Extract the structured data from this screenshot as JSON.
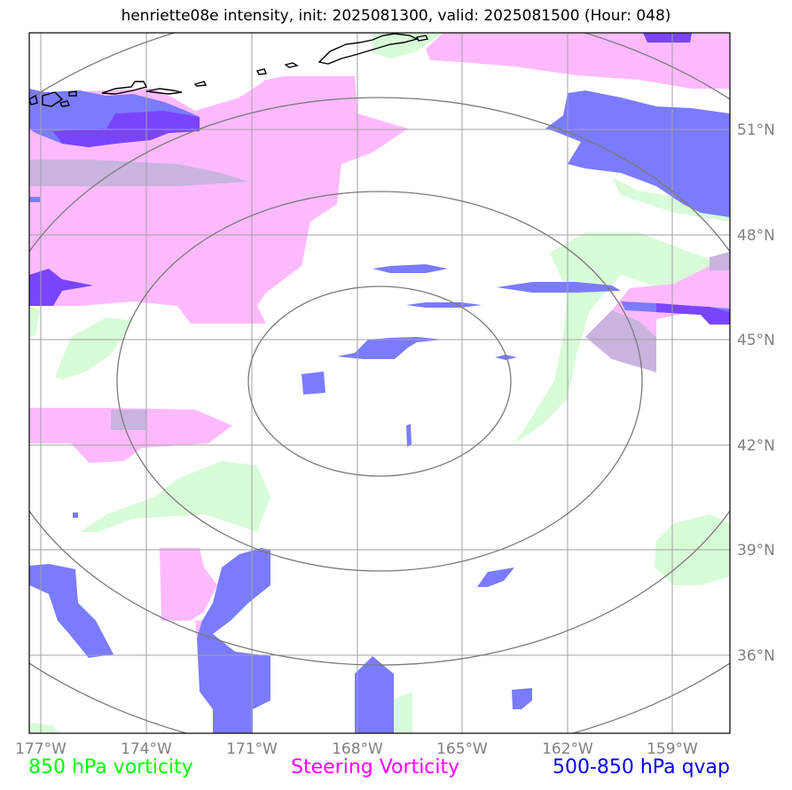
{
  "title": "henriette08e intensity, init: 2025081300, valid: 2025081500 (Hour: 048)",
  "legend": [
    {
      "label": "850 hPa vorticity",
      "color": "#00ff00"
    },
    {
      "label": "Steering Vorticity",
      "color": "#ff00ff"
    },
    {
      "label": "500-850 hPa qvap",
      "color": "#0000ff"
    }
  ],
  "lon_labels": [
    "177°W",
    "174°W",
    "171°W",
    "168°W",
    "165°W",
    "162°W",
    "159°W"
  ],
  "lat_labels": [
    "51°N",
    "48°N",
    "45°N",
    "42°N",
    "39°N",
    "36°N"
  ],
  "fill_colors": {
    "vort850": "#d8fcd8",
    "steering": "#ffbaff",
    "qvap": "#7b7bff",
    "qvap_dark": "#7a44ff",
    "qvap_mixed": "#c9b4e0"
  }
}
